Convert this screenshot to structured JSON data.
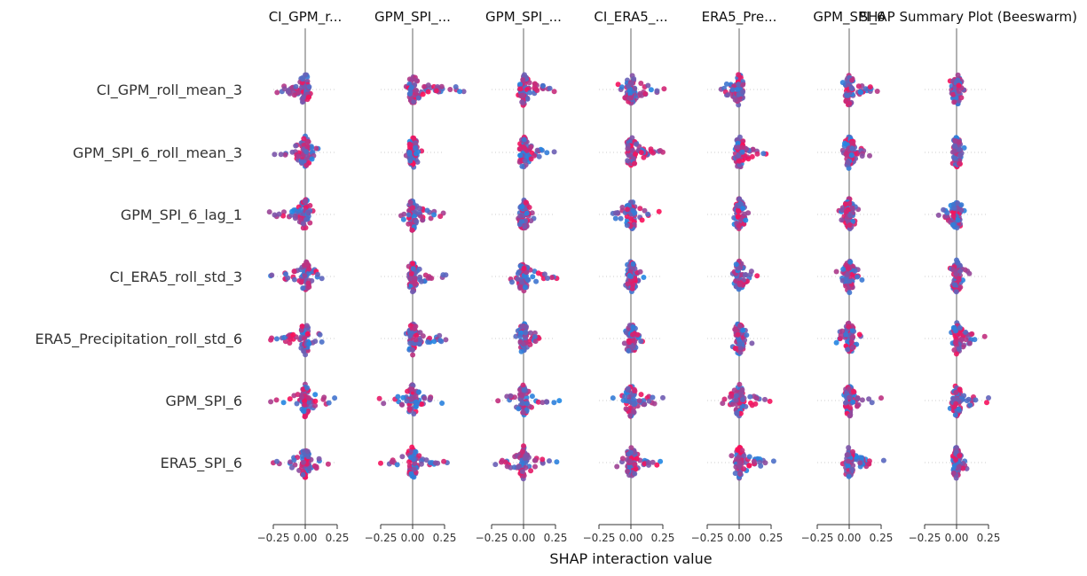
{
  "chart_data": {
    "type": "scatter",
    "title": "SHAP Summary Plot (Beeswarm)",
    "xlabel": "SHAP interaction value",
    "xlim": [
      -0.3,
      0.3
    ],
    "xticks": [
      -0.25,
      0.0,
      0.25
    ],
    "xtick_labels": [
      "−0.25",
      "0.00",
      "0.25"
    ],
    "column_titles": [
      "CI_GPM_r...",
      "GPM_SPI_...",
      "GPM_SPI_...",
      "CI_ERA5_...",
      "ERA5_Pre...",
      "GPM_SPI_6",
      ""
    ],
    "rows": [
      "CI_GPM_roll_mean_3",
      "GPM_SPI_6_roll_mean_3",
      "GPM_SPI_6_lag_1",
      "CI_ERA5_roll_std_3",
      "ERA5_Precipitation_roll_std_6",
      "GPM_SPI_6",
      "ERA5_SPI_6"
    ],
    "colors": {
      "low": "#1e88e5",
      "high": "#ff0d57",
      "zero_line": "#999999",
      "axis": "#333333"
    },
    "extent": [
      [
        [
          -0.22,
          0.04
        ],
        [
          -0.05,
          0.4
        ],
        [
          -0.04,
          0.24
        ],
        [
          -0.1,
          0.26
        ],
        [
          -0.14,
          0.03
        ],
        [
          -0.05,
          0.22
        ],
        [
          -0.05,
          0.06
        ]
      ],
      [
        [
          -0.24,
          0.1
        ],
        [
          -0.05,
          0.07
        ],
        [
          -0.03,
          0.24
        ],
        [
          -0.03,
          0.25
        ],
        [
          -0.04,
          0.21
        ],
        [
          -0.05,
          0.16
        ],
        [
          -0.03,
          0.06
        ]
      ],
      [
        [
          -0.28,
          0.06
        ],
        [
          -0.09,
          0.24
        ],
        [
          -0.04,
          0.08
        ],
        [
          -0.14,
          0.22
        ],
        [
          -0.04,
          0.07
        ],
        [
          -0.08,
          0.07
        ],
        [
          -0.14,
          0.06
        ]
      ],
      [
        [
          -0.27,
          0.13
        ],
        [
          -0.03,
          0.26
        ],
        [
          -0.1,
          0.26
        ],
        [
          -0.04,
          0.1
        ],
        [
          -0.05,
          0.14
        ],
        [
          -0.1,
          0.1
        ],
        [
          -0.05,
          0.1
        ]
      ],
      [
        [
          -0.27,
          0.13
        ],
        [
          -0.05,
          0.26
        ],
        [
          -0.06,
          0.12
        ],
        [
          -0.05,
          0.09
        ],
        [
          -0.05,
          0.1
        ],
        [
          -0.1,
          0.09
        ],
        [
          -0.04,
          0.22
        ]
      ],
      [
        [
          -0.27,
          0.23
        ],
        [
          -0.26,
          0.23
        ],
        [
          -0.2,
          0.28
        ],
        [
          -0.14,
          0.25
        ],
        [
          -0.13,
          0.24
        ],
        [
          -0.04,
          0.25
        ],
        [
          -0.05,
          0.25
        ]
      ],
      [
        [
          -0.25,
          0.18
        ],
        [
          -0.25,
          0.27
        ],
        [
          -0.22,
          0.26
        ],
        [
          -0.11,
          0.23
        ],
        [
          -0.06,
          0.27
        ],
        [
          -0.05,
          0.27
        ],
        [
          -0.02,
          0.08
        ]
      ]
    ]
  }
}
